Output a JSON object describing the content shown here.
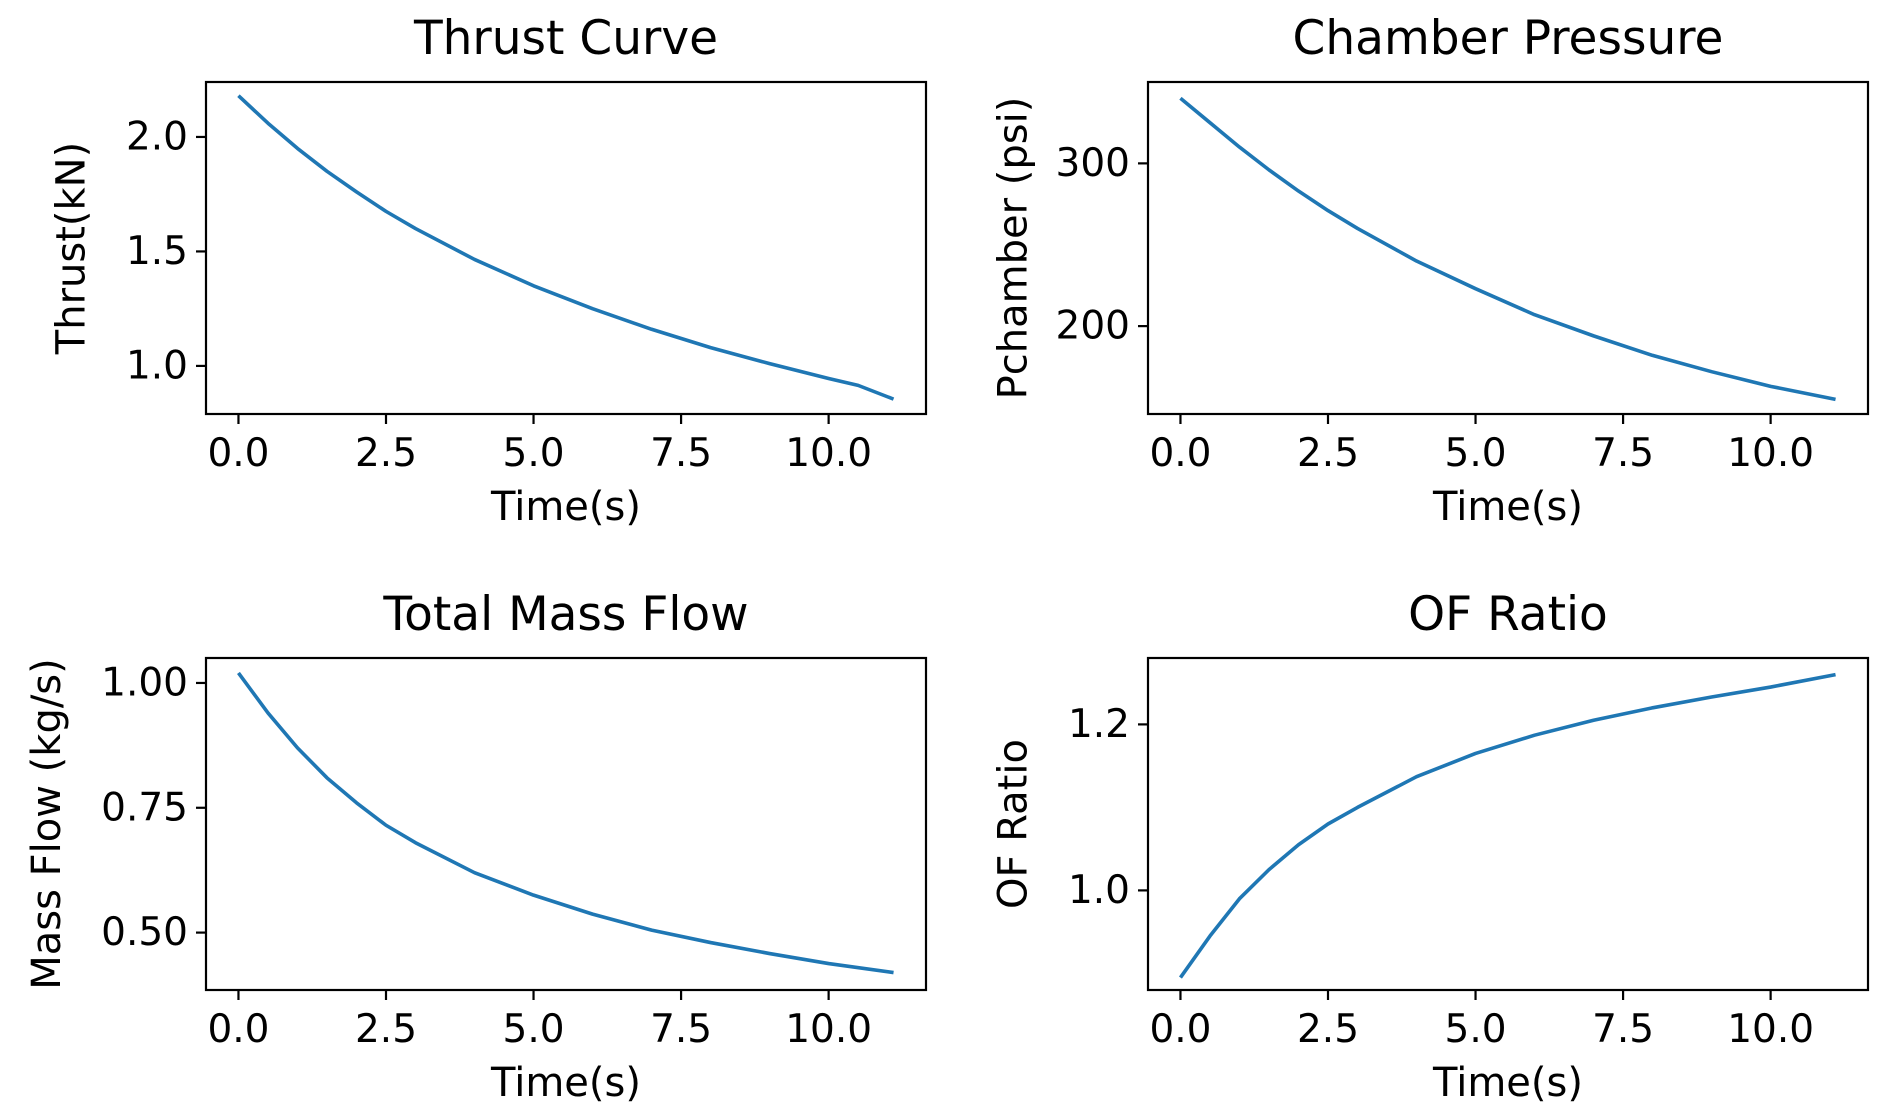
{
  "colors": {
    "line": "#1f77b4",
    "axes": "#000000",
    "background": "#ffffff"
  },
  "chart_data": [
    {
      "type": "line",
      "title": "Thrust Curve",
      "xlabel": "Time(s)",
      "ylabel": "Thrust(kN)",
      "xlim": [
        -0.55,
        11.65
      ],
      "ylim": [
        0.79,
        2.24
      ],
      "xticks": [
        0,
        2.5,
        5,
        7.5,
        10
      ],
      "xtick_labels": [
        "0.0",
        "2.5",
        "5.0",
        "7.5",
        "10.0"
      ],
      "yticks": [
        1.0,
        1.5,
        2.0
      ],
      "ytick_labels": [
        "1.0",
        "1.5",
        "2.0"
      ],
      "grid": false,
      "x": [
        0,
        0.5,
        1,
        1.5,
        2,
        2.5,
        3,
        4,
        5,
        6,
        7,
        8,
        9,
        10,
        10.5,
        11.1
      ],
      "y": [
        2.18,
        2.06,
        1.95,
        1.85,
        1.76,
        1.675,
        1.6,
        1.465,
        1.35,
        1.25,
        1.16,
        1.08,
        1.01,
        0.945,
        0.915,
        0.855
      ]
    },
    {
      "type": "line",
      "title": "Chamber Pressure",
      "xlabel": "Time(s)",
      "ylabel": "Pchamber (psi)",
      "xlim": [
        -0.55,
        11.65
      ],
      "ylim": [
        146,
        350
      ],
      "xticks": [
        0,
        2.5,
        5,
        7.5,
        10
      ],
      "xtick_labels": [
        "0.0",
        "2.5",
        "5.0",
        "7.5",
        "10.0"
      ],
      "yticks": [
        200,
        300
      ],
      "ytick_labels": [
        "200",
        "300"
      ],
      "grid": false,
      "x": [
        0,
        0.5,
        1,
        1.5,
        2,
        2.5,
        3,
        4,
        5,
        6,
        7,
        8,
        9,
        10,
        11.1
      ],
      "y": [
        340,
        325,
        310,
        296,
        283,
        271,
        260,
        240,
        223,
        207,
        194,
        182,
        172,
        163,
        155
      ]
    },
    {
      "type": "line",
      "title": "Total Mass Flow",
      "xlabel": "Time(s)",
      "ylabel": "Mass Flow (kg/s)",
      "xlim": [
        -0.55,
        11.65
      ],
      "ylim": [
        0.385,
        1.05
      ],
      "xticks": [
        0,
        2.5,
        5,
        7.5,
        10
      ],
      "xtick_labels": [
        "0.0",
        "2.5",
        "5.0",
        "7.5",
        "10.0"
      ],
      "yticks": [
        0.5,
        0.75,
        1.0
      ],
      "ytick_labels": [
        "0.50",
        "0.75",
        "1.00"
      ],
      "grid": false,
      "x": [
        0,
        0.5,
        1,
        1.5,
        2,
        2.5,
        3,
        4,
        5,
        6,
        7,
        8,
        9,
        10,
        11.1
      ],
      "y": [
        1.02,
        0.94,
        0.87,
        0.81,
        0.76,
        0.715,
        0.68,
        0.62,
        0.575,
        0.537,
        0.505,
        0.48,
        0.458,
        0.438,
        0.42
      ]
    },
    {
      "type": "line",
      "title": "OF Ratio",
      "xlabel": "Time(s)",
      "ylabel": "OF Ratio",
      "xlim": [
        -0.55,
        11.65
      ],
      "ylim": [
        0.88,
        1.28
      ],
      "xticks": [
        0,
        2.5,
        5,
        7.5,
        10
      ],
      "xtick_labels": [
        "0.0",
        "2.5",
        "5.0",
        "7.5",
        "10.0"
      ],
      "yticks": [
        1.0,
        1.2
      ],
      "ytick_labels": [
        "1.0",
        "1.2"
      ],
      "grid": false,
      "x": [
        0,
        0.5,
        1,
        1.5,
        2,
        2.5,
        3,
        4,
        5,
        6,
        7,
        8,
        9,
        10,
        11.1
      ],
      "y": [
        0.895,
        0.945,
        0.99,
        1.025,
        1.055,
        1.08,
        1.1,
        1.137,
        1.165,
        1.187,
        1.205,
        1.22,
        1.233,
        1.245,
        1.26
      ]
    }
  ]
}
